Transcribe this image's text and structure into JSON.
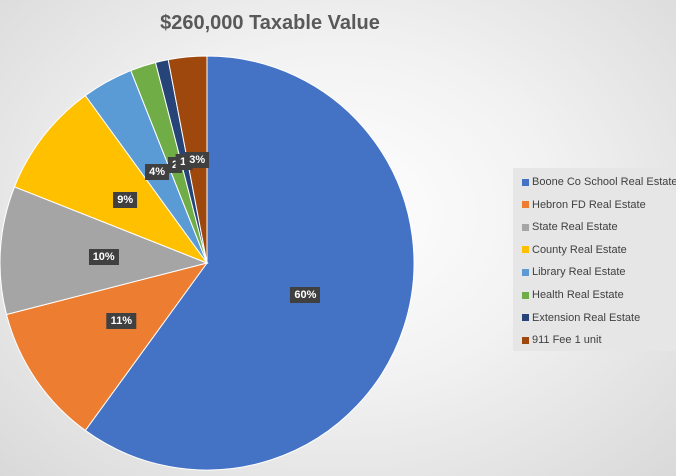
{
  "chart_data": {
    "type": "pie",
    "title": "$260,000 Taxable Value",
    "legend_position": "right",
    "slices": [
      {
        "name": "Boone Co School Real Estate",
        "value": 60,
        "label": "60%",
        "color": "#4472c4"
      },
      {
        "name": "Hebron FD Real Estate",
        "value": 11,
        "label": "11%",
        "color": "#ed7d31"
      },
      {
        "name": "State Real Estate",
        "value": 10,
        "label": "10%",
        "color": "#a5a5a5"
      },
      {
        "name": "County Real Estate",
        "value": 9,
        "label": "9%",
        "color": "#ffc000"
      },
      {
        "name": "Library Real Estate",
        "value": 4,
        "label": "4%",
        "color": "#5b9bd5"
      },
      {
        "name": "Health Real Estate",
        "value": 2,
        "label": "2",
        "color": "#70ad47"
      },
      {
        "name": "Extension Real Estate",
        "value": 1,
        "label": "1'",
        "color": "#264478"
      },
      {
        "name": "911 Fee 1 unit",
        "value": 3,
        "label": "3%",
        "color": "#9e480e"
      }
    ]
  }
}
